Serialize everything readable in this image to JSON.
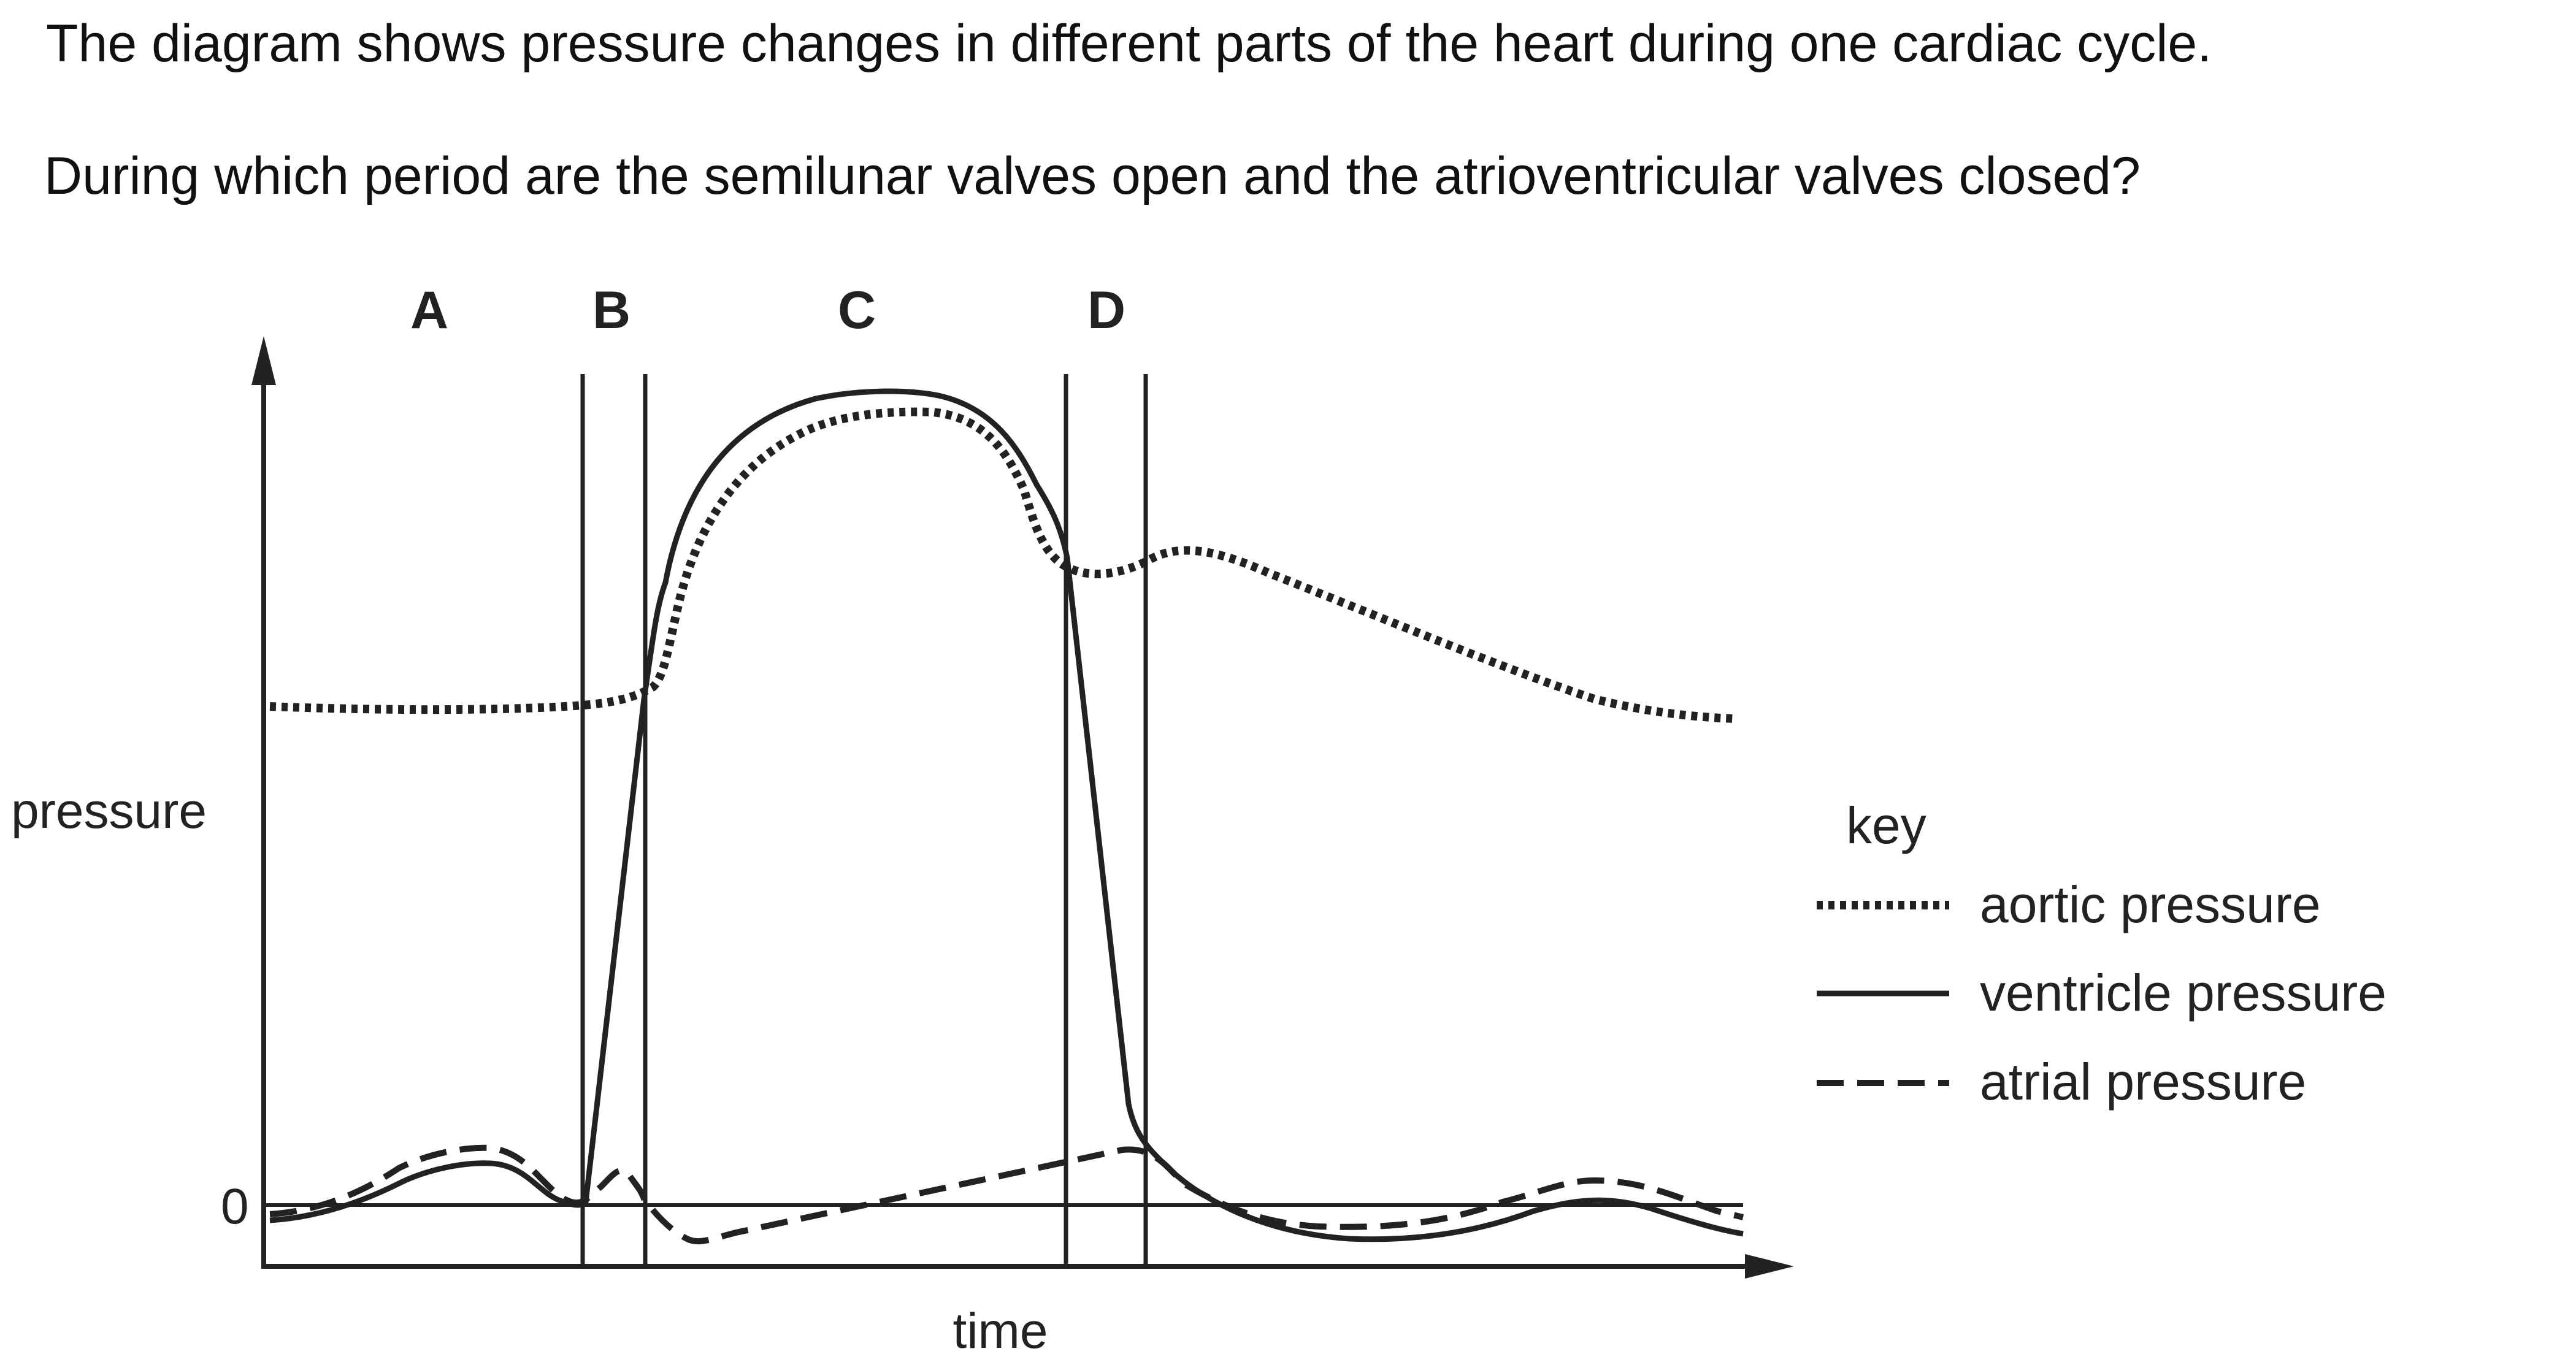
{
  "question": {
    "intro": "The diagram shows pressure changes in different parts of the heart during one cardiac cycle.",
    "prompt": "During which period are the semilunar valves open and the atrioventricular valves closed?"
  },
  "diagram": {
    "period_labels": [
      "A",
      "B",
      "C",
      "D"
    ],
    "y_axis_label": "pressure",
    "x_axis_label": "time",
    "zero_label": "0",
    "key": {
      "title": "key",
      "entries": [
        {
          "label": "aortic pressure",
          "line_style": "dotted"
        },
        {
          "label": "ventricle pressure",
          "line_style": "solid"
        },
        {
          "label": "atrial pressure",
          "line_style": "dashed"
        }
      ]
    },
    "colors": {
      "ink": "#222222",
      "background": "#ffffff"
    }
  }
}
